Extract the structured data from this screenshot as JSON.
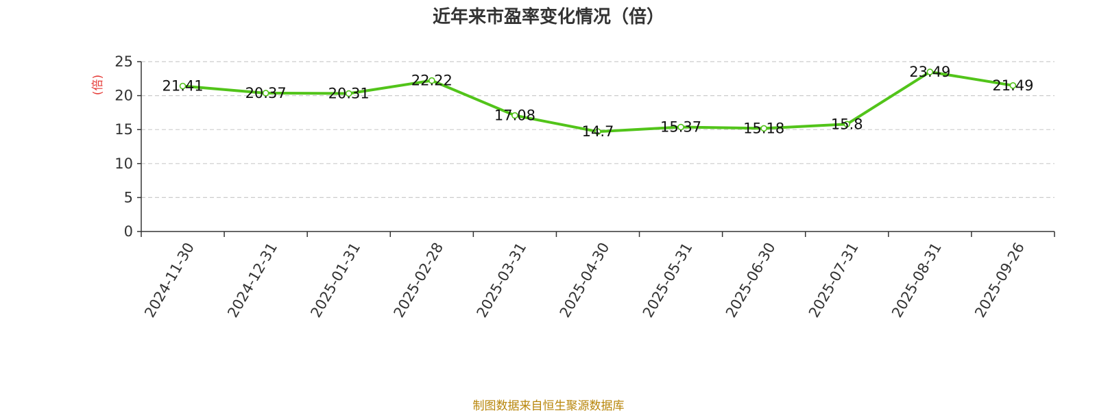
{
  "chart_data": {
    "type": "line",
    "title": "近年来市盈率变化情况（倍）",
    "ylabel": "(倍)",
    "xlabel": "",
    "categories": [
      "2024-11-30",
      "2024-12-31",
      "2025-01-31",
      "2025-02-28",
      "2025-03-31",
      "2025-04-30",
      "2025-05-31",
      "2025-06-30",
      "2025-07-31",
      "2025-08-31",
      "2025-09-26"
    ],
    "series": [
      {
        "values": [
          21.41,
          20.37,
          20.31,
          22.22,
          17.08,
          14.7,
          15.37,
          15.18,
          15.8,
          23.49,
          21.49
        ]
      }
    ],
    "data_labels": [
      "21.41",
      "20.37",
      "20.31",
      "22.22",
      "17.08",
      "14.7",
      "15.37",
      "15.18",
      "15.8",
      "23.49",
      "21.49"
    ],
    "yticks": [
      0,
      5,
      10,
      15,
      20,
      25
    ],
    "ylim": [
      0,
      25
    ],
    "grid": true,
    "legend": "none"
  },
  "colors": {
    "line": "#52c41a",
    "ylabel": "#e53935",
    "source": "#b8860b"
  },
  "source": "制图数据来自恒生聚源数据库"
}
